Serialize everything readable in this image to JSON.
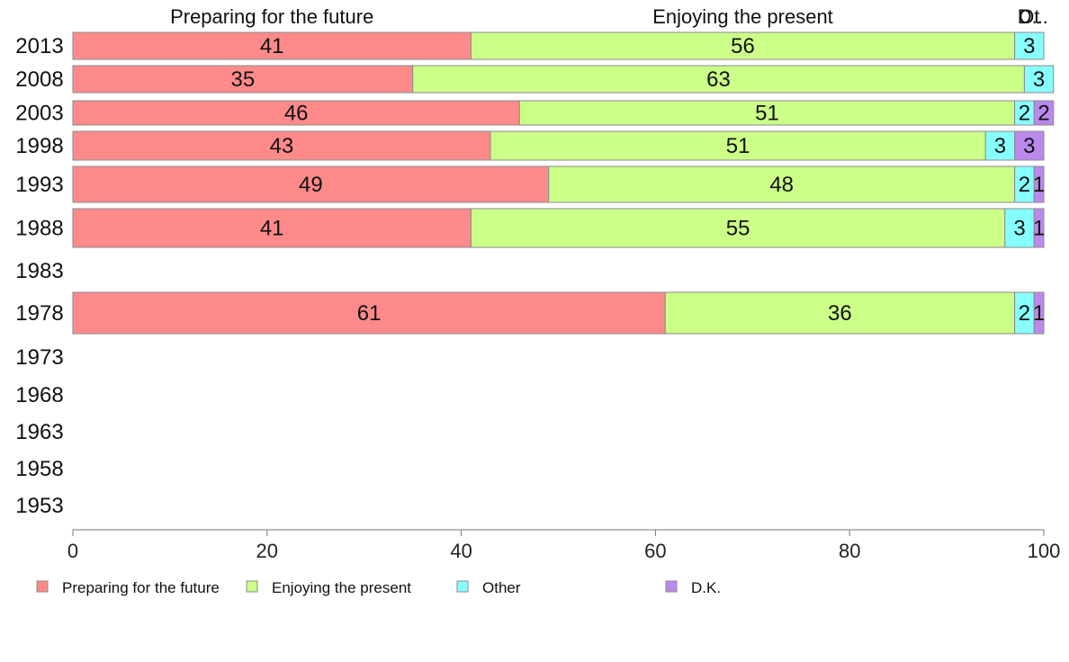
{
  "chart_data": {
    "type": "bar",
    "orientation": "horizontal",
    "stacked": true,
    "categories": [
      "2013",
      "2008",
      "2003",
      "1998",
      "1993",
      "1988",
      "1983",
      "1978",
      "1973",
      "1968",
      "1963",
      "1958",
      "1953"
    ],
    "series": [
      {
        "name": "Preparing for the future",
        "color": "#ff8a8a",
        "values": [
          41,
          35,
          46,
          43,
          49,
          41,
          null,
          61,
          null,
          null,
          null,
          null,
          null
        ]
      },
      {
        "name": "Enjoying the present",
        "color": "#ccff88",
        "values": [
          56,
          63,
          51,
          51,
          48,
          55,
          null,
          36,
          null,
          null,
          null,
          null,
          null
        ]
      },
      {
        "name": "Other",
        "color": "#88ffff",
        "values": [
          3,
          3,
          2,
          3,
          2,
          3,
          null,
          2,
          null,
          null,
          null,
          null,
          null
        ]
      },
      {
        "name": "D.K.",
        "color": "#bb88ee",
        "values": [
          0,
          0,
          2,
          3,
          1,
          1,
          null,
          1,
          null,
          null,
          null,
          null,
          null
        ]
      }
    ],
    "column_headers": [
      "Preparing for the future",
      "Enjoying the present",
      "Ot",
      "D..."
    ],
    "xlim": [
      0,
      100
    ],
    "xticks": [
      0,
      20,
      40,
      60,
      80,
      100
    ],
    "grid": false,
    "legend_position": "bottom"
  }
}
